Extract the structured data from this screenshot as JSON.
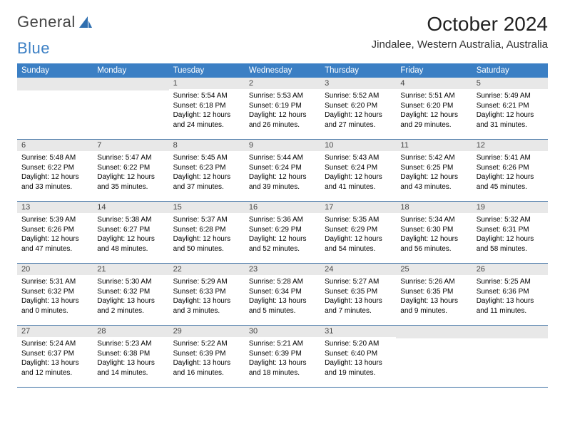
{
  "logo": {
    "text1": "General",
    "text2": "Blue"
  },
  "header": {
    "month": "October 2024",
    "location": "Jindalee, Western Australia, Australia"
  },
  "colors": {
    "header_bg": "#3b7fc4",
    "header_text": "#ffffff",
    "daynum_bg": "#e8e8e8",
    "row_border": "#3b6fa4",
    "page_bg": "#ffffff",
    "text": "#000000"
  },
  "weekdays": [
    "Sunday",
    "Monday",
    "Tuesday",
    "Wednesday",
    "Thursday",
    "Friday",
    "Saturday"
  ],
  "weeks": [
    [
      null,
      null,
      {
        "n": "1",
        "sr": "5:54 AM",
        "ss": "6:18 PM",
        "dh": "12",
        "dm": "24"
      },
      {
        "n": "2",
        "sr": "5:53 AM",
        "ss": "6:19 PM",
        "dh": "12",
        "dm": "26"
      },
      {
        "n": "3",
        "sr": "5:52 AM",
        "ss": "6:20 PM",
        "dh": "12",
        "dm": "27"
      },
      {
        "n": "4",
        "sr": "5:51 AM",
        "ss": "6:20 PM",
        "dh": "12",
        "dm": "29"
      },
      {
        "n": "5",
        "sr": "5:49 AM",
        "ss": "6:21 PM",
        "dh": "12",
        "dm": "31"
      }
    ],
    [
      {
        "n": "6",
        "sr": "5:48 AM",
        "ss": "6:22 PM",
        "dh": "12",
        "dm": "33"
      },
      {
        "n": "7",
        "sr": "5:47 AM",
        "ss": "6:22 PM",
        "dh": "12",
        "dm": "35"
      },
      {
        "n": "8",
        "sr": "5:45 AM",
        "ss": "6:23 PM",
        "dh": "12",
        "dm": "37"
      },
      {
        "n": "9",
        "sr": "5:44 AM",
        "ss": "6:24 PM",
        "dh": "12",
        "dm": "39"
      },
      {
        "n": "10",
        "sr": "5:43 AM",
        "ss": "6:24 PM",
        "dh": "12",
        "dm": "41"
      },
      {
        "n": "11",
        "sr": "5:42 AM",
        "ss": "6:25 PM",
        "dh": "12",
        "dm": "43"
      },
      {
        "n": "12",
        "sr": "5:41 AM",
        "ss": "6:26 PM",
        "dh": "12",
        "dm": "45"
      }
    ],
    [
      {
        "n": "13",
        "sr": "5:39 AM",
        "ss": "6:26 PM",
        "dh": "12",
        "dm": "47"
      },
      {
        "n": "14",
        "sr": "5:38 AM",
        "ss": "6:27 PM",
        "dh": "12",
        "dm": "48"
      },
      {
        "n": "15",
        "sr": "5:37 AM",
        "ss": "6:28 PM",
        "dh": "12",
        "dm": "50"
      },
      {
        "n": "16",
        "sr": "5:36 AM",
        "ss": "6:29 PM",
        "dh": "12",
        "dm": "52"
      },
      {
        "n": "17",
        "sr": "5:35 AM",
        "ss": "6:29 PM",
        "dh": "12",
        "dm": "54"
      },
      {
        "n": "18",
        "sr": "5:34 AM",
        "ss": "6:30 PM",
        "dh": "12",
        "dm": "56"
      },
      {
        "n": "19",
        "sr": "5:32 AM",
        "ss": "6:31 PM",
        "dh": "12",
        "dm": "58"
      }
    ],
    [
      {
        "n": "20",
        "sr": "5:31 AM",
        "ss": "6:32 PM",
        "dh": "13",
        "dm": "0"
      },
      {
        "n": "21",
        "sr": "5:30 AM",
        "ss": "6:32 PM",
        "dh": "13",
        "dm": "2"
      },
      {
        "n": "22",
        "sr": "5:29 AM",
        "ss": "6:33 PM",
        "dh": "13",
        "dm": "3"
      },
      {
        "n": "23",
        "sr": "5:28 AM",
        "ss": "6:34 PM",
        "dh": "13",
        "dm": "5"
      },
      {
        "n": "24",
        "sr": "5:27 AM",
        "ss": "6:35 PM",
        "dh": "13",
        "dm": "7"
      },
      {
        "n": "25",
        "sr": "5:26 AM",
        "ss": "6:35 PM",
        "dh": "13",
        "dm": "9"
      },
      {
        "n": "26",
        "sr": "5:25 AM",
        "ss": "6:36 PM",
        "dh": "13",
        "dm": "11"
      }
    ],
    [
      {
        "n": "27",
        "sr": "5:24 AM",
        "ss": "6:37 PM",
        "dh": "13",
        "dm": "12"
      },
      {
        "n": "28",
        "sr": "5:23 AM",
        "ss": "6:38 PM",
        "dh": "13",
        "dm": "14"
      },
      {
        "n": "29",
        "sr": "5:22 AM",
        "ss": "6:39 PM",
        "dh": "13",
        "dm": "16"
      },
      {
        "n": "30",
        "sr": "5:21 AM",
        "ss": "6:39 PM",
        "dh": "13",
        "dm": "18"
      },
      {
        "n": "31",
        "sr": "5:20 AM",
        "ss": "6:40 PM",
        "dh": "13",
        "dm": "19"
      },
      null,
      null
    ]
  ],
  "labels": {
    "sunrise": "Sunrise:",
    "sunset": "Sunset:",
    "daylight": "Daylight:",
    "hours": "hours",
    "and": "and",
    "minutes": "minutes."
  }
}
